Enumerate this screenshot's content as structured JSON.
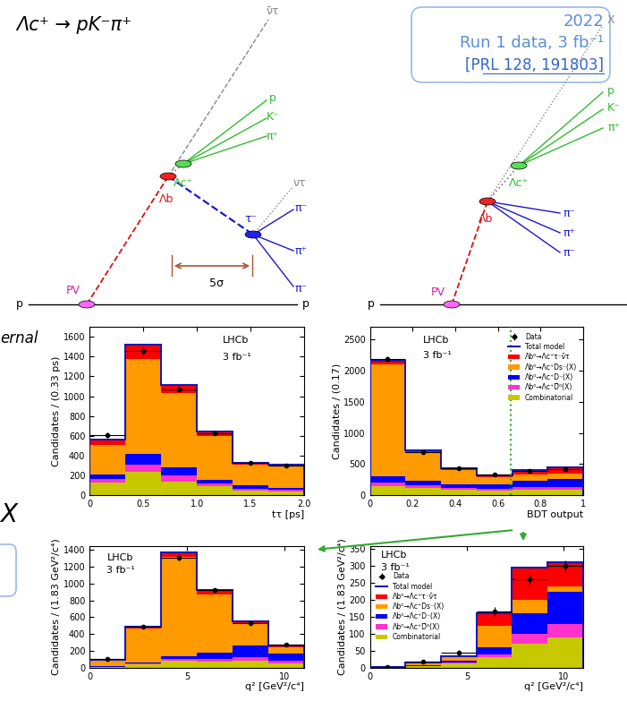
{
  "title": "Λc⁺ → pK⁻π⁺",
  "info_box": {
    "year": "2022",
    "text": "Run 1 data, 3 fb⁻¹",
    "reference": "[PRL 128, 191803]"
  },
  "diagrams": {
    "left": {
      "labels": [
        "ν̄τ",
        "p",
        "K⁻",
        "π⁺",
        "Λc⁺",
        "Λb",
        "τ⁻",
        "ντ",
        "π⁻",
        "π⁺",
        "π⁻",
        "5σ",
        "PV",
        "p",
        "p"
      ]
    },
    "right": {
      "labels": [
        "X",
        "p",
        "K⁻",
        "π⁺",
        "Λc⁺",
        "Λb",
        "π⁻",
        "π⁺",
        "π⁻",
        "PV",
        "p"
      ]
    }
  },
  "side_texts": [
    "ernal",
    "X"
  ],
  "chart_data": [
    {
      "type": "bar",
      "stacked": true,
      "xlabel": "tτ [ps]",
      "ylabel": "Candidates / (0.33 ps)",
      "annotations": [
        "LHCb",
        "3 fb⁻¹"
      ],
      "bins": [
        0,
        0.333,
        0.667,
        1.0,
        1.333,
        1.667,
        2.0
      ],
      "xlim": [
        0,
        2
      ],
      "xticks": [
        0,
        0.5,
        {
          "value": 1,
          "label": "1.0"
        },
        1.5,
        {
          "value": 2,
          "label": "2.0"
        }
      ],
      "ylim": [
        0,
        1700
      ],
      "yticks": [
        0,
        200,
        400,
        600,
        800,
        1000,
        1200,
        1400,
        1600
      ],
      "series": [
        {
          "type": "errorbar",
          "color": "#000000",
          "values": [
            610,
            1460,
            1070,
            630,
            330,
            300
          ],
          "errors": [
            25,
            38,
            33,
            25,
            18,
            17
          ]
        },
        {
          "type": "step",
          "color": "#1a1ab0",
          "values": [
            560,
            1520,
            1110,
            640,
            330,
            310
          ]
        },
        {
          "type": "bar",
          "color": "#ff0000",
          "values": [
            50,
            150,
            80,
            40,
            20,
            10
          ]
        },
        {
          "type": "bar",
          "color": "#ff9a00",
          "values": [
            300,
            950,
            750,
            440,
            210,
            220
          ]
        },
        {
          "type": "bar",
          "color": "#0000ff",
          "values": [
            40,
            110,
            80,
            40,
            30,
            20
          ]
        },
        {
          "type": "bar",
          "color": "#ff33cc",
          "values": [
            40,
            70,
            60,
            30,
            20,
            20
          ]
        },
        {
          "type": "bar",
          "color": "#c8c800",
          "values": [
            130,
            240,
            140,
            90,
            50,
            40
          ]
        }
      ]
    },
    {
      "type": "bar",
      "stacked": true,
      "xlabel": "BDT output",
      "ylabel": "Candidates / (0.17)",
      "annotations": [
        "LHCb",
        "3 fb⁻¹"
      ],
      "legend": "upper right",
      "cut_line": 0.66,
      "bins": [
        0,
        0.167,
        0.333,
        0.5,
        0.667,
        0.833,
        1.0
      ],
      "xlim": [
        0,
        1
      ],
      "xticks": [
        0,
        0.2,
        0.4,
        0.6,
        0.8,
        1
      ],
      "ylim": [
        0,
        2700
      ],
      "yticks": [
        0,
        500,
        1000,
        1500,
        2000,
        2500
      ],
      "series": [
        {
          "name": "Data",
          "type": "errorbar",
          "color": "#000000",
          "values": [
            2180,
            700,
            430,
            330,
            390,
            420
          ],
          "errors": [
            47,
            26,
            21,
            18,
            20,
            20
          ]
        },
        {
          "name": "Total model",
          "type": "step",
          "color": "#1a1ab0",
          "values": [
            2150,
            720,
            440,
            320,
            400,
            450
          ]
        },
        {
          "name": "Λb⁰→Λc⁺τ⁻ν̄τ",
          "type": "bar",
          "color": "#ff0000",
          "values": [
            60,
            40,
            30,
            30,
            60,
            100
          ]
        },
        {
          "name": "Λb⁰→Λc⁺Ds⁻(X)",
          "type": "bar",
          "color": "#ff9a00",
          "values": [
            1780,
            440,
            230,
            110,
            110,
            90
          ]
        },
        {
          "name": "Λb⁰→Λc⁺D⁻(X)",
          "type": "bar",
          "color": "#0000ff",
          "values": [
            100,
            80,
            60,
            70,
            100,
            120
          ]
        },
        {
          "name": "Λb⁰→Λc⁺D̄⁰(X)",
          "type": "bar",
          "color": "#ff33cc",
          "values": [
            60,
            40,
            30,
            30,
            40,
            50
          ]
        },
        {
          "name": "Combinatorial",
          "type": "bar",
          "color": "#c8c800",
          "values": [
            150,
            120,
            90,
            80,
            90,
            90
          ]
        }
      ]
    },
    {
      "type": "bar",
      "stacked": true,
      "xlabel": "q² [GeV²/c⁴]",
      "ylabel": "Candidates / (1.83 GeV²/c⁴)",
      "annotations": [
        "LHCb",
        "3 fb⁻¹"
      ],
      "bins": [
        0,
        1.833,
        3.667,
        5.5,
        7.333,
        9.167,
        11
      ],
      "xlim": [
        0,
        11
      ],
      "xticks": [
        0,
        5,
        10
      ],
      "ylim": [
        0,
        1450
      ],
      "yticks": [
        0,
        200,
        400,
        600,
        800,
        1000,
        1200,
        1400
      ],
      "series": [
        {
          "type": "errorbar",
          "color": "#000000",
          "values": [
            100,
            490,
            1310,
            920,
            530,
            270
          ],
          "errors": [
            10,
            22,
            36,
            30,
            23,
            16
          ]
        },
        {
          "type": "step",
          "color": "#1a1ab0",
          "values": [
            90,
            490,
            1370,
            920,
            550,
            260
          ]
        },
        {
          "type": "bar",
          "color": "#ff0000",
          "values": [
            5,
            25,
            50,
            50,
            30,
            20
          ]
        },
        {
          "type": "bar",
          "color": "#ff9a00",
          "values": [
            70,
            400,
            1180,
            690,
            260,
            70
          ]
        },
        {
          "type": "bar",
          "color": "#0000ff",
          "values": [
            5,
            15,
            40,
            80,
            130,
            90
          ]
        },
        {
          "type": "bar",
          "color": "#ff33cc",
          "values": [
            0,
            10,
            20,
            30,
            50,
            30
          ]
        },
        {
          "type": "bar",
          "color": "#c8c800",
          "values": [
            10,
            40,
            80,
            70,
            80,
            50
          ]
        }
      ]
    },
    {
      "type": "bar",
      "stacked": true,
      "xlabel": "q² [GeV²/c⁴]",
      "ylabel": "Candidates / (1.83 GeV²/c⁴)",
      "annotations": [
        "LHCb",
        "3 fb⁻¹"
      ],
      "legend": "center left",
      "bins": [
        0,
        1.833,
        3.667,
        5.5,
        7.333,
        9.167,
        11
      ],
      "xlim": [
        0,
        11
      ],
      "xticks": [
        0,
        5,
        10
      ],
      "ylim": [
        0,
        360
      ],
      "yticks": [
        0,
        50,
        100,
        150,
        200,
        250,
        300,
        350
      ],
      "series": [
        {
          "name": "Data",
          "type": "errorbar",
          "color": "#000000",
          "values": [
            2,
            18,
            45,
            165,
            260,
            300
          ],
          "errors": [
            1.4,
            4,
            7,
            13,
            16,
            17
          ]
        },
        {
          "name": "Total model",
          "type": "step",
          "color": "#1a1ab0",
          "values": [
            3,
            15,
            35,
            160,
            295,
            310
          ]
        },
        {
          "name": "Λb⁰→Λc⁺τ⁻ν̄τ",
          "type": "bar",
          "color": "#ff0000",
          "values": [
            1,
            2,
            4,
            35,
            95,
            70
          ]
        },
        {
          "name": "Λb⁰→Λc⁺Ds⁻(X)",
          "type": "bar",
          "color": "#ff9a00",
          "values": [
            1,
            5,
            10,
            65,
            40,
            15
          ]
        },
        {
          "name": "Λb⁰→Λc⁺D⁻(X)",
          "type": "bar",
          "color": "#0000ff",
          "values": [
            0,
            2,
            6,
            20,
            60,
            95
          ]
        },
        {
          "name": "Λb⁰→Λc⁺D̄⁰(X)",
          "type": "bar",
          "color": "#ff33cc",
          "values": [
            0,
            1,
            3,
            10,
            30,
            40
          ]
        },
        {
          "name": "Combinatorial",
          "type": "bar",
          "color": "#c8c800",
          "values": [
            1,
            5,
            12,
            30,
            70,
            90
          ]
        }
      ]
    }
  ]
}
